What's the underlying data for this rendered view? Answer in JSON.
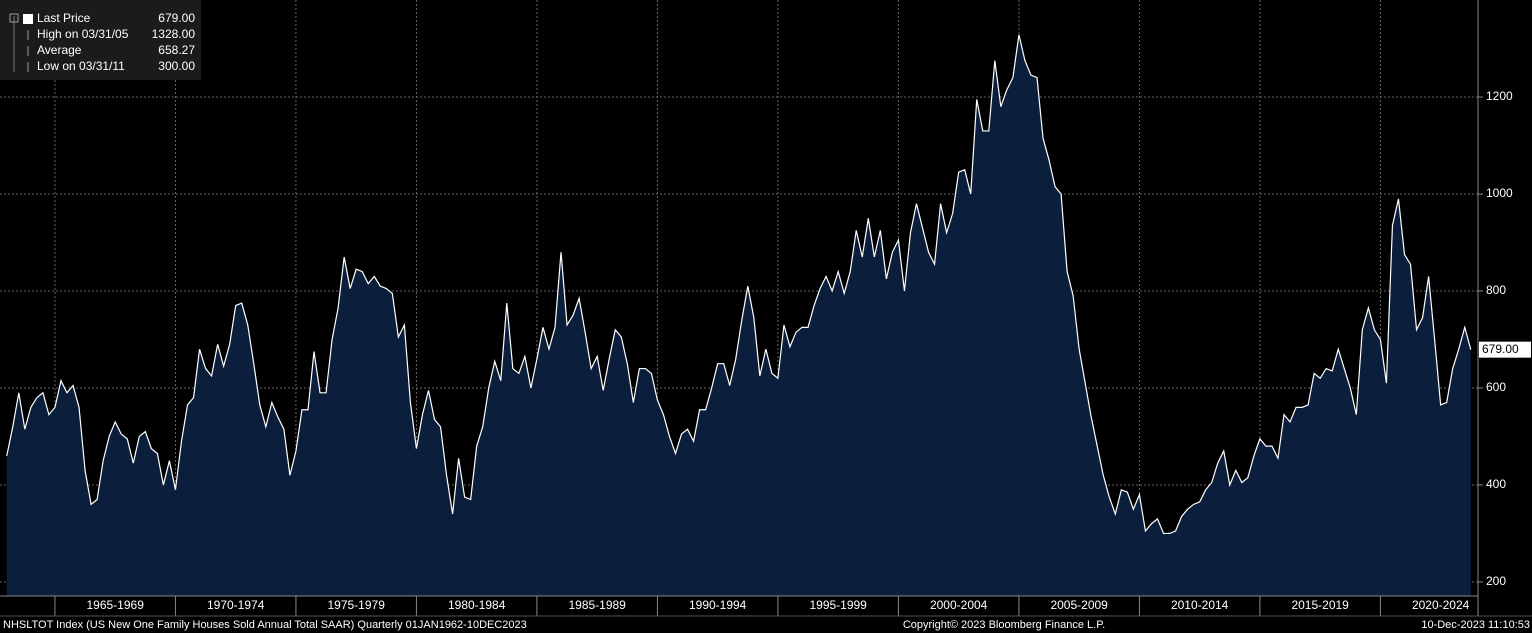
{
  "chart_data": {
    "type": "area",
    "legend": [
      {
        "label": "Last Price",
        "value": "679.00"
      },
      {
        "label": "High on 03/31/05",
        "value": "1328.00"
      },
      {
        "label": "Average",
        "value": "658.27"
      },
      {
        "label": "Low on 03/31/11",
        "value": "300.00"
      }
    ],
    "footer_left": "NHSLTOT Index (US New One Family Houses Sold Annual Total SAAR)  Quarterly 01JAN1962-10DEC2023",
    "footer_center": "Copyright© 2023 Bloomberg Finance L.P.",
    "footer_right": "10-Dec-2023 11:10:53",
    "series": [
      {
        "name": "Last Price",
        "color": "#ffffff",
        "fill": "#0b1f3d",
        "x": [
          1963,
          1963.25,
          1963.5,
          1963.75,
          1964,
          1964.25,
          1964.5,
          1964.75,
          1965,
          1965.25,
          1965.5,
          1965.75,
          1966,
          1966.25,
          1966.5,
          1966.75,
          1967,
          1967.25,
          1967.5,
          1967.75,
          1968,
          1968.25,
          1968.5,
          1968.75,
          1969,
          1969.25,
          1969.5,
          1969.75,
          1970,
          1970.25,
          1970.5,
          1970.75,
          1971,
          1971.25,
          1971.5,
          1971.75,
          1972,
          1972.25,
          1972.5,
          1972.75,
          1973,
          1973.25,
          1973.5,
          1973.75,
          1974,
          1974.25,
          1974.5,
          1974.75,
          1975,
          1975.25,
          1975.5,
          1975.75,
          1976,
          1976.25,
          1976.5,
          1976.75,
          1977,
          1977.25,
          1977.5,
          1977.75,
          1978,
          1978.25,
          1978.5,
          1978.75,
          1979,
          1979.25,
          1979.5,
          1979.75,
          1980,
          1980.25,
          1980.5,
          1980.75,
          1981,
          1981.25,
          1981.5,
          1981.75,
          1982,
          1982.25,
          1982.5,
          1982.75,
          1983,
          1983.25,
          1983.5,
          1983.75,
          1984,
          1984.25,
          1984.5,
          1984.75,
          1985,
          1985.25,
          1985.5,
          1985.75,
          1986,
          1986.25,
          1986.5,
          1986.75,
          1987,
          1987.25,
          1987.5,
          1987.75,
          1988,
          1988.25,
          1988.5,
          1988.75,
          1989,
          1989.25,
          1989.5,
          1989.75,
          1990,
          1990.25,
          1990.5,
          1990.75,
          1991,
          1991.25,
          1991.5,
          1991.75,
          1992,
          1992.25,
          1992.5,
          1992.75,
          1993,
          1993.25,
          1993.5,
          1993.75,
          1994,
          1994.25,
          1994.5,
          1994.75,
          1995,
          1995.25,
          1995.5,
          1995.75,
          1996,
          1996.25,
          1996.5,
          1996.75,
          1997,
          1997.25,
          1997.5,
          1997.75,
          1998,
          1998.25,
          1998.5,
          1998.75,
          1999,
          1999.25,
          1999.5,
          1999.75,
          2000,
          2000.25,
          2000.5,
          2000.75,
          2001,
          2001.25,
          2001.5,
          2001.75,
          2002,
          2002.25,
          2002.5,
          2002.75,
          2003,
          2003.25,
          2003.5,
          2003.75,
          2004,
          2004.25,
          2004.5,
          2004.75,
          2005,
          2005.25,
          2005.5,
          2005.75,
          2006,
          2006.25,
          2006.5,
          2006.75,
          2007,
          2007.25,
          2007.5,
          2007.75,
          2008,
          2008.25,
          2008.5,
          2008.75,
          2009,
          2009.25,
          2009.5,
          2009.75,
          2010,
          2010.25,
          2010.5,
          2010.75,
          2011,
          2011.25,
          2011.5,
          2011.75,
          2012,
          2012.25,
          2012.5,
          2012.75,
          2013,
          2013.25,
          2013.5,
          2013.75,
          2014,
          2014.25,
          2014.5,
          2014.75,
          2015,
          2015.25,
          2015.5,
          2015.75,
          2016,
          2016.25,
          2016.5,
          2016.75,
          2017,
          2017.25,
          2017.5,
          2017.75,
          2018,
          2018.25,
          2018.5,
          2018.75,
          2019,
          2019.25,
          2019.5,
          2019.75,
          2020,
          2020.25,
          2020.5,
          2020.75,
          2021,
          2021.25,
          2021.5,
          2021.75,
          2022,
          2022.25,
          2022.5,
          2022.75,
          2023,
          2023.25,
          2023.5,
          2023.75
        ],
        "values": [
          460,
          520,
          590,
          515,
          560,
          580,
          590,
          545,
          560,
          615,
          590,
          605,
          560,
          430,
          360,
          370,
          450,
          500,
          530,
          505,
          495,
          445,
          500,
          510,
          475,
          465,
          400,
          450,
          390,
          490,
          565,
          580,
          680,
          640,
          625,
          690,
          645,
          690,
          770,
          775,
          730,
          650,
          565,
          520,
          570,
          540,
          515,
          420,
          470,
          555,
          555,
          675,
          590,
          590,
          700,
          765,
          870,
          805,
          845,
          840,
          815,
          830,
          810,
          805,
          795,
          705,
          730,
          570,
          475,
          545,
          595,
          535,
          520,
          420,
          340,
          455,
          375,
          370,
          480,
          520,
          600,
          655,
          615,
          775,
          640,
          630,
          665,
          600,
          660,
          725,
          680,
          725,
          880,
          730,
          750,
          785,
          715,
          640,
          665,
          595,
          660,
          720,
          705,
          650,
          570,
          640,
          640,
          630,
          575,
          545,
          500,
          465,
          505,
          515,
          490,
          555,
          555,
          600,
          650,
          650,
          605,
          660,
          740,
          810,
          745,
          625,
          680,
          630,
          620,
          730,
          685,
          715,
          725,
          725,
          770,
          805,
          830,
          800,
          840,
          795,
          840,
          925,
          870,
          950,
          870,
          925,
          825,
          880,
          905,
          800,
          920,
          980,
          930,
          880,
          855,
          980,
          920,
          960,
          1045,
          1050,
          1000,
          1195,
          1130,
          1130,
          1275,
          1180,
          1215,
          1240,
          1328,
          1275,
          1245,
          1240,
          1115,
          1070,
          1015,
          1000,
          840,
          790,
          680,
          610,
          540,
          480,
          420,
          375,
          340,
          390,
          385,
          350,
          380,
          305,
          320,
          330,
          300,
          300,
          305,
          335,
          350,
          360,
          365,
          390,
          405,
          445,
          470,
          400,
          430,
          405,
          415,
          460,
          495,
          480,
          480,
          455,
          545,
          530,
          560,
          560,
          565,
          630,
          620,
          640,
          635,
          680,
          640,
          600,
          545,
          720,
          765,
          720,
          700,
          610,
          935,
          990,
          875,
          855,
          720,
          745,
          830,
          700,
          565,
          570,
          640,
          680,
          725,
          679
        ]
      }
    ],
    "xlim": [
      1962.72,
      2024.05
    ],
    "xticks": [
      {
        "value": 1967.5,
        "label": "1965-1969"
      },
      {
        "value": 1972.5,
        "label": "1970-1974"
      },
      {
        "value": 1977.5,
        "label": "1975-1979"
      },
      {
        "value": 1982.5,
        "label": "1980-1984"
      },
      {
        "value": 1987.5,
        "label": "1985-1989"
      },
      {
        "value": 1992.5,
        "label": "1990-1994"
      },
      {
        "value": 1997.5,
        "label": "1995-1999"
      },
      {
        "value": 2002.5,
        "label": "2000-2004"
      },
      {
        "value": 2007.5,
        "label": "2005-2009"
      },
      {
        "value": 2012.5,
        "label": "2010-2014"
      },
      {
        "value": 2017.5,
        "label": "2015-2019"
      },
      {
        "value": 2022.5,
        "label": "2020-2024"
      }
    ],
    "ylim": [
      171,
      1400
    ],
    "yticks": [
      200,
      400,
      600,
      800,
      1000,
      1200
    ],
    "grid": true
  }
}
